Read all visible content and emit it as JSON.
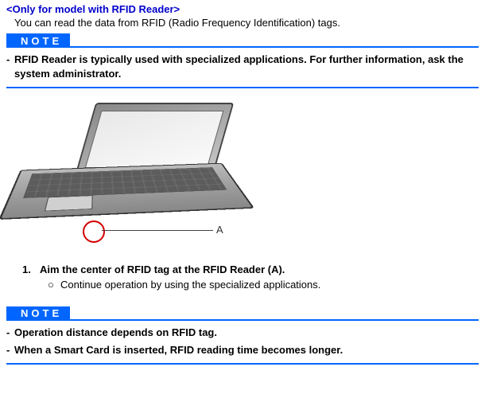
{
  "colors": {
    "accent": "#0066ff",
    "heading": "#0000cc",
    "circle": "#d00000"
  },
  "heading": "<Only for model with RFID Reader>",
  "intro": "You can read the data from RFID (Radio Frequency Identification) tags.",
  "note1": {
    "label": "NOTE",
    "items": [
      "RFID Reader is typically used with specialized applications. For further information, ask the system administrator."
    ]
  },
  "diagram": {
    "marker_label": "A"
  },
  "step": {
    "number": "1.",
    "text": "Aim the center of RFID tag at the RFID Reader (A).",
    "sub_bullet": "○",
    "sub_text": "Continue operation by using the specialized applications."
  },
  "note2": {
    "label": "NOTE",
    "items": [
      "Operation distance depends on RFID tag.",
      "When a Smart Card is inserted, RFID reading time becomes longer."
    ]
  }
}
